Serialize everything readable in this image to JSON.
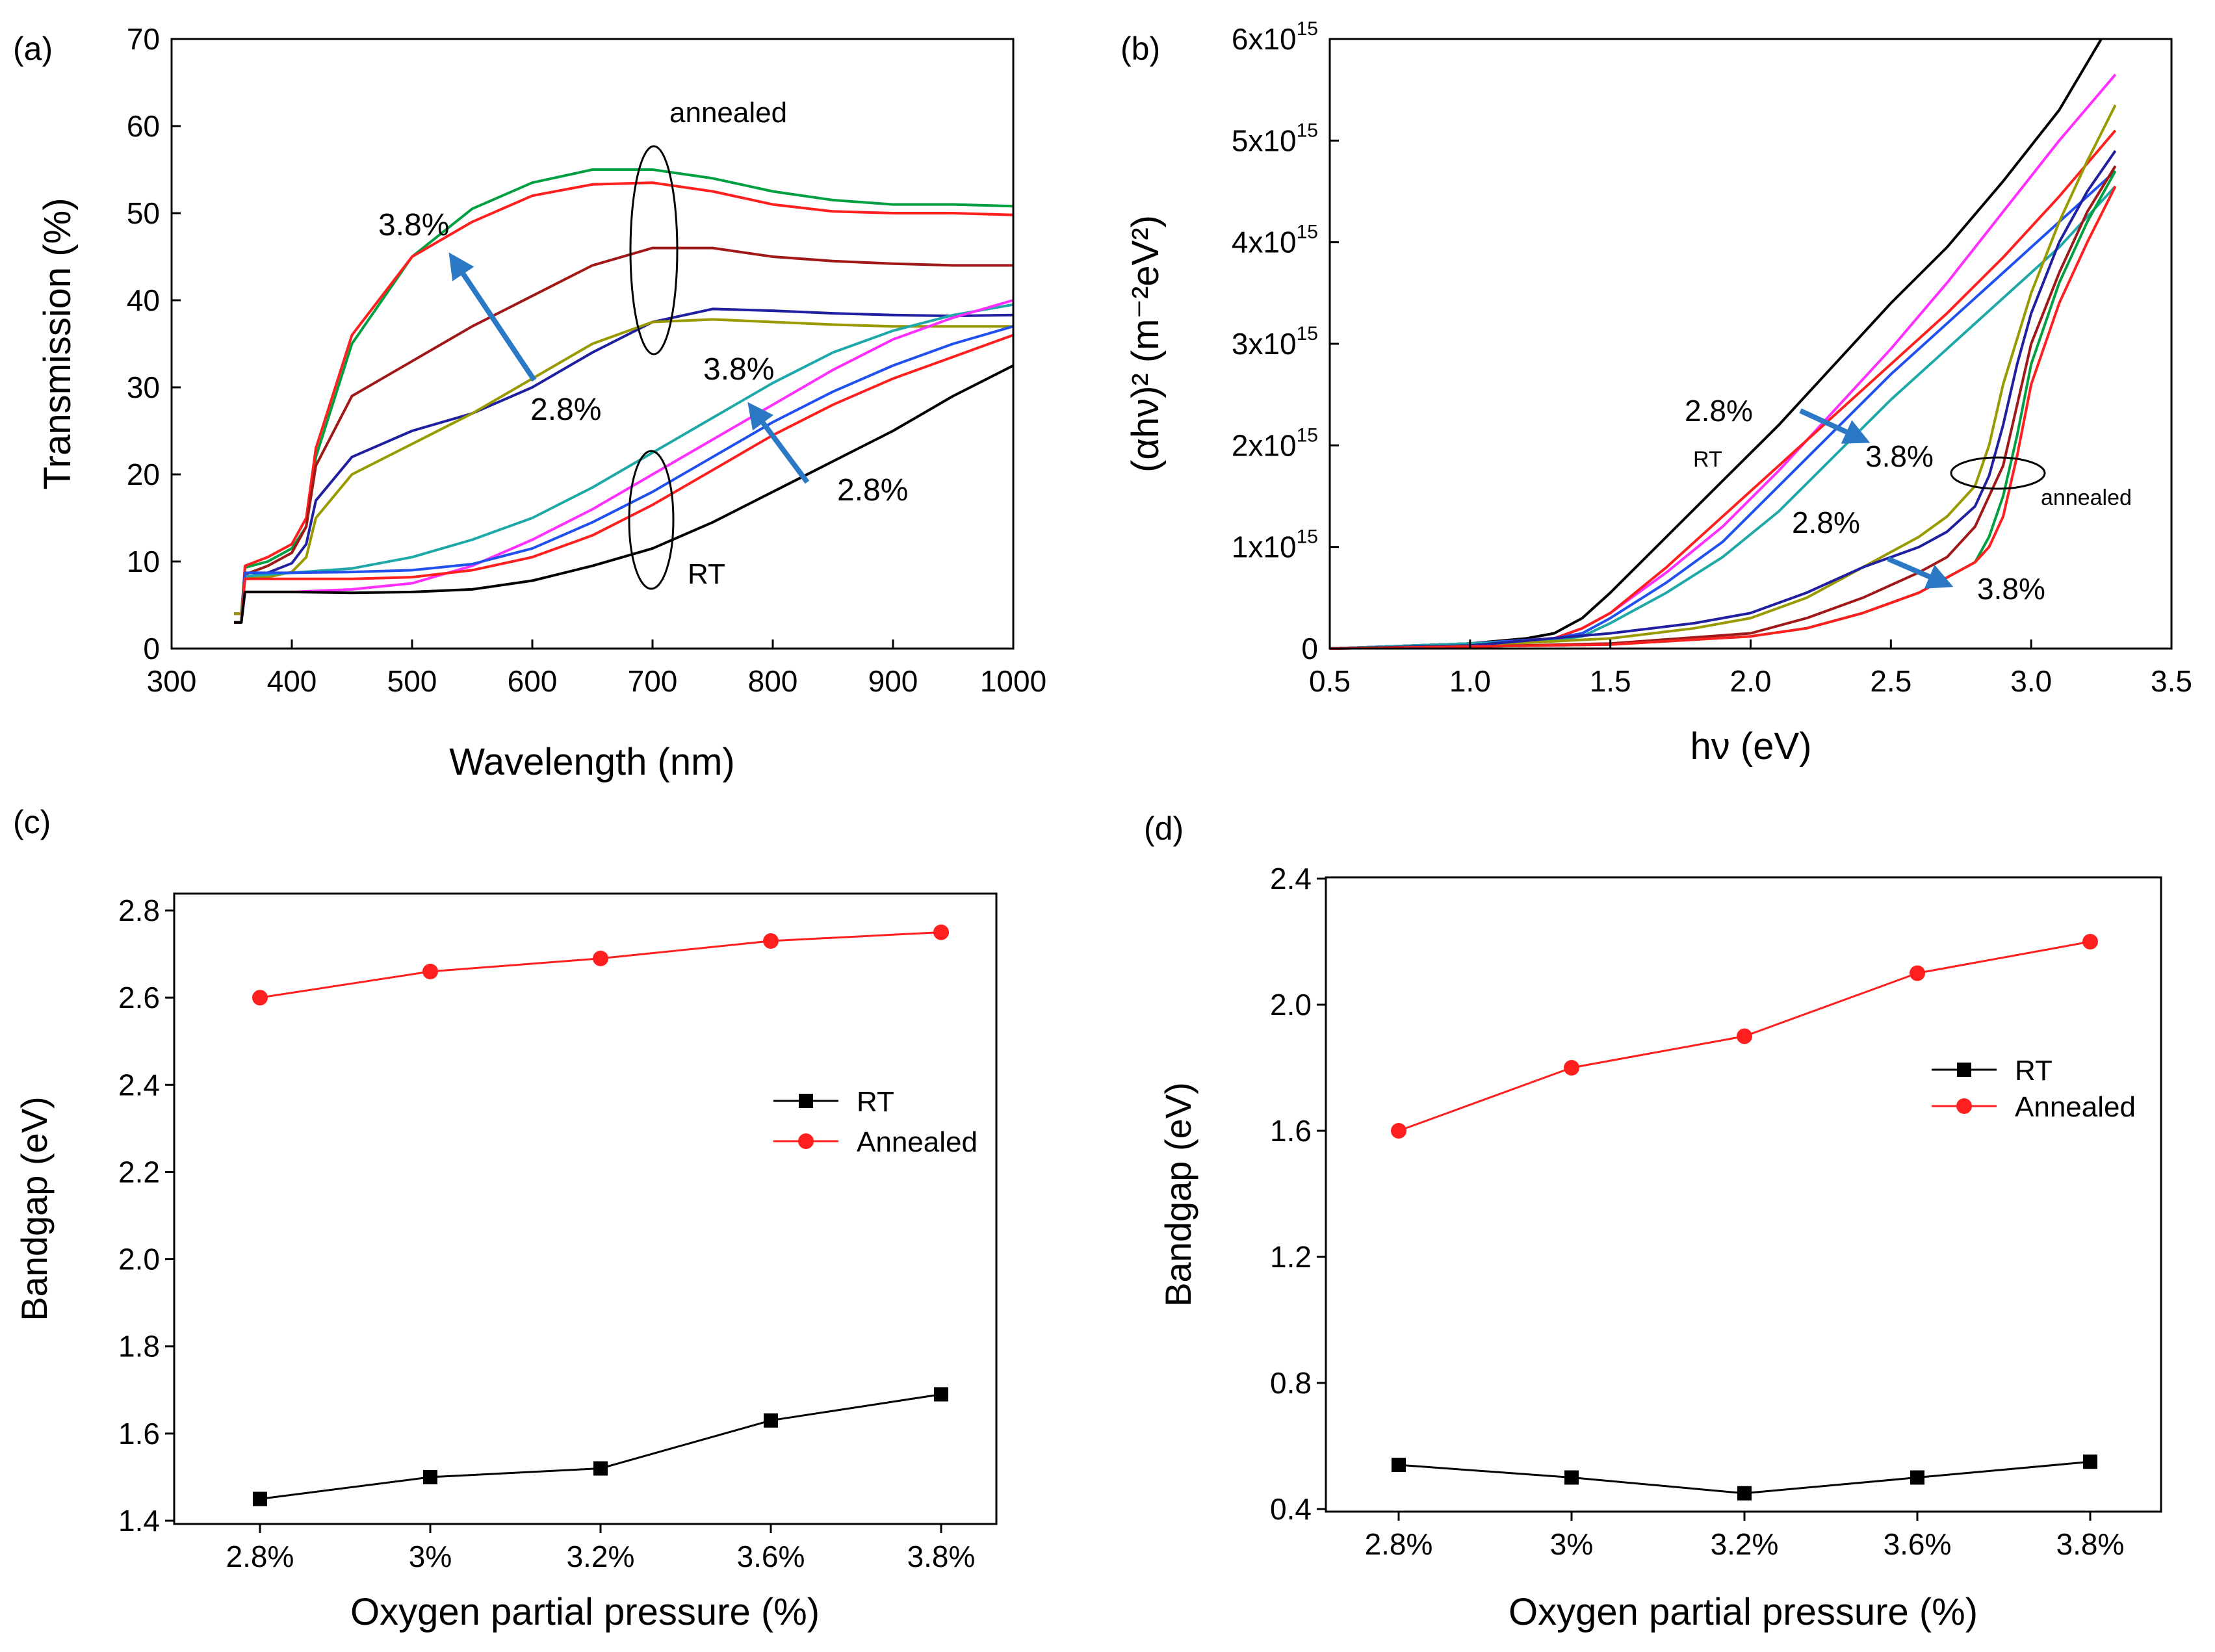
{
  "figure": {
    "panels": [
      "(a)",
      "(b)",
      "(c)",
      "(d)"
    ]
  },
  "colors": {
    "axis": "#000000",
    "arrow": "#2b79c5",
    "black": "#000000",
    "red": "#ff1f1f",
    "green": "#00a040",
    "darkred": "#a01818",
    "navy": "#1f1f9f",
    "olive": "#999900",
    "teal": "#1fa8a8",
    "magenta": "#ff30ff",
    "blue": "#2050ee"
  },
  "chart_data": [
    {
      "panel": "(a)",
      "type": "line",
      "xlabel": "Wavelength (nm)",
      "ylabel": "Transmission (%)",
      "xlim": [
        300,
        1000
      ],
      "ylim": [
        0,
        70
      ],
      "xticks": [
        "300",
        "400",
        "500",
        "600",
        "700",
        "800",
        "900",
        "1000"
      ],
      "yticks": [
        "0",
        "10",
        "20",
        "30",
        "40",
        "50",
        "60",
        "70"
      ],
      "annotations": {
        "annealed_label": "annealed",
        "rt_label": "RT",
        "ann_high": "3.8%",
        "ann_low": "2.8%",
        "rt_high": "3.8%",
        "rt_low": "2.8%"
      },
      "series": [
        {
          "group": "annealed",
          "color": "green",
          "x": [
            352,
            358,
            361,
            380,
            400,
            412,
            420,
            450,
            500,
            550,
            600,
            650,
            700,
            750,
            800,
            850,
            900,
            950,
            1000
          ],
          "y": [
            4,
            4,
            9.3,
            10,
            11.5,
            14,
            22,
            35,
            45,
            50.5,
            53.5,
            55,
            55,
            54,
            52.5,
            51.5,
            51,
            51,
            50.8
          ]
        },
        {
          "group": "annealed",
          "color": "red",
          "x": [
            352,
            358,
            361,
            380,
            400,
            412,
            420,
            450,
            500,
            550,
            600,
            650,
            700,
            750,
            800,
            850,
            900,
            950,
            1000
          ],
          "y": [
            3,
            3,
            9.5,
            10.5,
            12,
            15,
            23,
            36,
            45,
            49,
            52,
            53.3,
            53.5,
            52.5,
            51,
            50.2,
            50,
            50,
            49.8
          ]
        },
        {
          "group": "annealed",
          "color": "darkred",
          "x": [
            352,
            358,
            361,
            380,
            400,
            412,
            420,
            450,
            500,
            550,
            600,
            650,
            700,
            750,
            800,
            850,
            900,
            950,
            1000
          ],
          "y": [
            4,
            4,
            8.5,
            9.5,
            11,
            14,
            21,
            29,
            33,
            37,
            40.5,
            44,
            46,
            46,
            45,
            44.5,
            44.2,
            44,
            44
          ]
        },
        {
          "group": "annealed",
          "color": "navy",
          "x": [
            352,
            358,
            361,
            380,
            400,
            412,
            420,
            450,
            500,
            550,
            600,
            650,
            700,
            750,
            800,
            850,
            900,
            950,
            1000
          ],
          "y": [
            4,
            4,
            8.2,
            8.7,
            9.8,
            12,
            17,
            22,
            25,
            27,
            30,
            34,
            37.5,
            39,
            38.8,
            38.5,
            38.3,
            38.2,
            38.3
          ]
        },
        {
          "group": "annealed",
          "color": "olive",
          "x": [
            352,
            358,
            361,
            380,
            400,
            412,
            420,
            450,
            500,
            550,
            600,
            650,
            700,
            750,
            800,
            850,
            900,
            950,
            1000
          ],
          "y": [
            4,
            4,
            8,
            8.2,
            8.8,
            10.5,
            15,
            20,
            23.5,
            27,
            31,
            35,
            37.5,
            37.8,
            37.5,
            37.2,
            37,
            37,
            37
          ]
        },
        {
          "group": "RT",
          "color": "teal",
          "x": [
            352,
            358,
            361,
            400,
            450,
            500,
            550,
            600,
            650,
            700,
            750,
            800,
            850,
            900,
            950,
            1000
          ],
          "y": [
            3,
            3,
            8.3,
            8.7,
            9.2,
            10.5,
            12.5,
            15,
            18.5,
            22.5,
            26.5,
            30.5,
            34,
            36.5,
            38.3,
            39.5
          ]
        },
        {
          "group": "RT",
          "color": "magenta",
          "x": [
            352,
            358,
            361,
            400,
            450,
            500,
            550,
            600,
            650,
            700,
            750,
            800,
            850,
            900,
            950,
            1000
          ],
          "y": [
            3,
            3,
            6.5,
            6.5,
            6.8,
            7.5,
            9.5,
            12.5,
            16,
            20,
            24,
            28,
            32,
            35.5,
            38,
            40
          ]
        },
        {
          "group": "RT",
          "color": "blue",
          "x": [
            352,
            358,
            361,
            400,
            450,
            500,
            550,
            600,
            650,
            700,
            750,
            800,
            850,
            900,
            950,
            1000
          ],
          "y": [
            3,
            3,
            8.7,
            8.7,
            8.8,
            9,
            9.7,
            11.5,
            14.5,
            18,
            22,
            26,
            29.5,
            32.5,
            35,
            37
          ]
        },
        {
          "group": "RT",
          "color": "red",
          "x": [
            352,
            358,
            361,
            400,
            450,
            500,
            550,
            600,
            650,
            700,
            750,
            800,
            850,
            900,
            950,
            1000
          ],
          "y": [
            3,
            3,
            8,
            8,
            8,
            8.2,
            9,
            10.5,
            13,
            16.5,
            20.5,
            24.5,
            28,
            31,
            33.5,
            36
          ]
        },
        {
          "group": "RT",
          "color": "black",
          "x": [
            352,
            358,
            361,
            400,
            450,
            500,
            550,
            600,
            650,
            700,
            750,
            800,
            850,
            900,
            950,
            1000
          ],
          "y": [
            3,
            3,
            6.5,
            6.5,
            6.4,
            6.5,
            6.8,
            7.8,
            9.5,
            11.5,
            14.5,
            18,
            21.5,
            25,
            29,
            32.5
          ]
        }
      ]
    },
    {
      "panel": "(b)",
      "type": "line",
      "xlabel": "hν (eV)",
      "ylabel": "(αhν)² (m⁻²eV²)",
      "xlim": [
        0.5,
        3.5
      ],
      "ylim": [
        0,
        6
      ],
      "y_unit": "×10^15",
      "xticks": [
        "0.5",
        "1.0",
        "1.5",
        "2.0",
        "2.5",
        "3.0",
        "3.5"
      ],
      "yticks": [
        "0",
        "1x10",
        "2x10",
        "3x10",
        "4x10",
        "5x10",
        "6x10"
      ],
      "ytick_exponent": "15",
      "annotations": {
        "rt_low": "2.8%",
        "rt_label": "RT",
        "rt_high": "3.8%",
        "ann_low": "2.8%",
        "ann_high": "3.8%",
        "annealed_label": "annealed"
      },
      "series": [
        {
          "group": "RT",
          "color": "black",
          "x": [
            0.5,
            1.0,
            1.2,
            1.3,
            1.4,
            1.5,
            1.7,
            1.9,
            2.1,
            2.3,
            2.5,
            2.7,
            2.9,
            3.1,
            3.25
          ],
          "y": [
            0,
            0.05,
            0.1,
            0.15,
            0.3,
            0.55,
            1.1,
            1.65,
            2.2,
            2.8,
            3.4,
            3.95,
            4.6,
            5.3,
            6.0
          ]
        },
        {
          "group": "RT",
          "color": "magenta",
          "x": [
            0.5,
            1.0,
            1.3,
            1.4,
            1.5,
            1.7,
            1.9,
            2.1,
            2.3,
            2.5,
            2.7,
            2.9,
            3.1,
            3.3
          ],
          "y": [
            0,
            0.05,
            0.1,
            0.2,
            0.35,
            0.75,
            1.2,
            1.75,
            2.35,
            2.95,
            3.6,
            4.3,
            5.0,
            5.65
          ]
        },
        {
          "group": "RT",
          "color": "red",
          "x": [
            0.5,
            1.0,
            1.3,
            1.4,
            1.5,
            1.7,
            1.9,
            2.1,
            2.3,
            2.5,
            2.7,
            2.9,
            3.1,
            3.3
          ],
          "y": [
            0,
            0.05,
            0.1,
            0.2,
            0.35,
            0.8,
            1.3,
            1.8,
            2.3,
            2.8,
            3.3,
            3.85,
            4.45,
            5.1
          ]
        },
        {
          "group": "RT",
          "color": "blue",
          "x": [
            0.5,
            1.0,
            1.3,
            1.4,
            1.5,
            1.7,
            1.9,
            2.1,
            2.3,
            2.5,
            2.7,
            2.9,
            3.1,
            3.3
          ],
          "y": [
            0,
            0.05,
            0.1,
            0.15,
            0.3,
            0.65,
            1.05,
            1.6,
            2.15,
            2.7,
            3.2,
            3.7,
            4.2,
            4.7
          ]
        },
        {
          "group": "RT",
          "color": "teal",
          "x": [
            0.5,
            1.0,
            1.3,
            1.4,
            1.5,
            1.7,
            1.9,
            2.1,
            2.3,
            2.5,
            2.7,
            2.9,
            3.1,
            3.3
          ],
          "y": [
            0,
            0.05,
            0.08,
            0.12,
            0.25,
            0.55,
            0.9,
            1.35,
            1.9,
            2.45,
            2.95,
            3.45,
            3.95,
            4.55
          ]
        },
        {
          "group": "annealed",
          "color": "olive",
          "x": [
            0.5,
            1.0,
            1.5,
            1.8,
            2.0,
            2.2,
            2.4,
            2.6,
            2.7,
            2.8,
            2.85,
            2.9,
            3.0,
            3.1,
            3.2,
            3.3
          ],
          "y": [
            0,
            0.03,
            0.1,
            0.2,
            0.3,
            0.5,
            0.8,
            1.1,
            1.3,
            1.6,
            2.0,
            2.6,
            3.5,
            4.2,
            4.8,
            5.35
          ]
        },
        {
          "group": "annealed",
          "color": "navy",
          "x": [
            0.5,
            1.0,
            1.5,
            1.8,
            2.0,
            2.2,
            2.4,
            2.6,
            2.7,
            2.8,
            2.85,
            2.9,
            2.95,
            3.0,
            3.1,
            3.2,
            3.3
          ],
          "y": [
            0,
            0.03,
            0.15,
            0.25,
            0.35,
            0.55,
            0.8,
            1.0,
            1.15,
            1.4,
            1.7,
            2.2,
            2.8,
            3.3,
            4.0,
            4.5,
            4.9
          ]
        },
        {
          "group": "annealed",
          "color": "darkred",
          "x": [
            0.5,
            1.0,
            1.5,
            2.0,
            2.2,
            2.4,
            2.6,
            2.7,
            2.8,
            2.9,
            2.95,
            3.0,
            3.1,
            3.2,
            3.3
          ],
          "y": [
            0,
            0.02,
            0.05,
            0.15,
            0.3,
            0.5,
            0.75,
            0.9,
            1.2,
            1.8,
            2.4,
            3.0,
            3.7,
            4.3,
            4.75
          ]
        },
        {
          "group": "annealed",
          "color": "green",
          "x": [
            0.5,
            1.0,
            1.5,
            2.0,
            2.2,
            2.4,
            2.6,
            2.7,
            2.8,
            2.85,
            2.9,
            2.95,
            3.0,
            3.1,
            3.2,
            3.3
          ],
          "y": [
            0,
            0.02,
            0.04,
            0.12,
            0.2,
            0.35,
            0.55,
            0.7,
            0.85,
            1.1,
            1.5,
            2.1,
            2.8,
            3.6,
            4.2,
            4.7
          ]
        },
        {
          "group": "annealed",
          "color": "red",
          "x": [
            0.5,
            1.0,
            1.5,
            2.0,
            2.2,
            2.4,
            2.6,
            2.7,
            2.8,
            2.85,
            2.9,
            2.95,
            3.0,
            3.1,
            3.2,
            3.3
          ],
          "y": [
            0,
            0.02,
            0.04,
            0.12,
            0.2,
            0.35,
            0.55,
            0.7,
            0.85,
            1.0,
            1.3,
            1.9,
            2.6,
            3.4,
            4.0,
            4.55
          ]
        }
      ]
    },
    {
      "panel": "(c)",
      "type": "line",
      "xlabel": "Oxygen partial pressure (%)",
      "ylabel": "Bandgap (eV)",
      "categories": [
        "2.8%",
        "3%",
        "3.2%",
        "3.6%",
        "3.8%"
      ],
      "ylim": [
        1.4,
        2.8
      ],
      "yticks": [
        "1.4",
        "1.6",
        "1.8",
        "2.0",
        "2.2",
        "2.4",
        "2.6",
        "2.8"
      ],
      "legend": "center-right",
      "series": [
        {
          "name": "RT",
          "color": "black",
          "marker": "square",
          "values": [
            1.45,
            1.5,
            1.52,
            1.63,
            1.69
          ]
        },
        {
          "name": "Annealed",
          "color": "red",
          "marker": "circle",
          "values": [
            2.6,
            2.66,
            2.69,
            2.73,
            2.75
          ]
        }
      ]
    },
    {
      "panel": "(d)",
      "type": "line",
      "xlabel": "Oxygen partial pressure (%)",
      "ylabel": "Bandgap (eV)",
      "categories": [
        "2.8%",
        "3%",
        "3.2%",
        "3.6%",
        "3.8%"
      ],
      "ylim": [
        0.4,
        2.4
      ],
      "yticks": [
        "0.4",
        "0.8",
        "1.2",
        "1.6",
        "2.0",
        "2.4"
      ],
      "legend": "center-right",
      "series": [
        {
          "name": "RT",
          "color": "black",
          "marker": "square",
          "values": [
            0.54,
            0.5,
            0.45,
            0.5,
            0.55
          ]
        },
        {
          "name": "Annealed",
          "color": "red",
          "marker": "circle",
          "values": [
            1.6,
            1.8,
            1.9,
            2.1,
            2.2
          ]
        }
      ]
    }
  ]
}
